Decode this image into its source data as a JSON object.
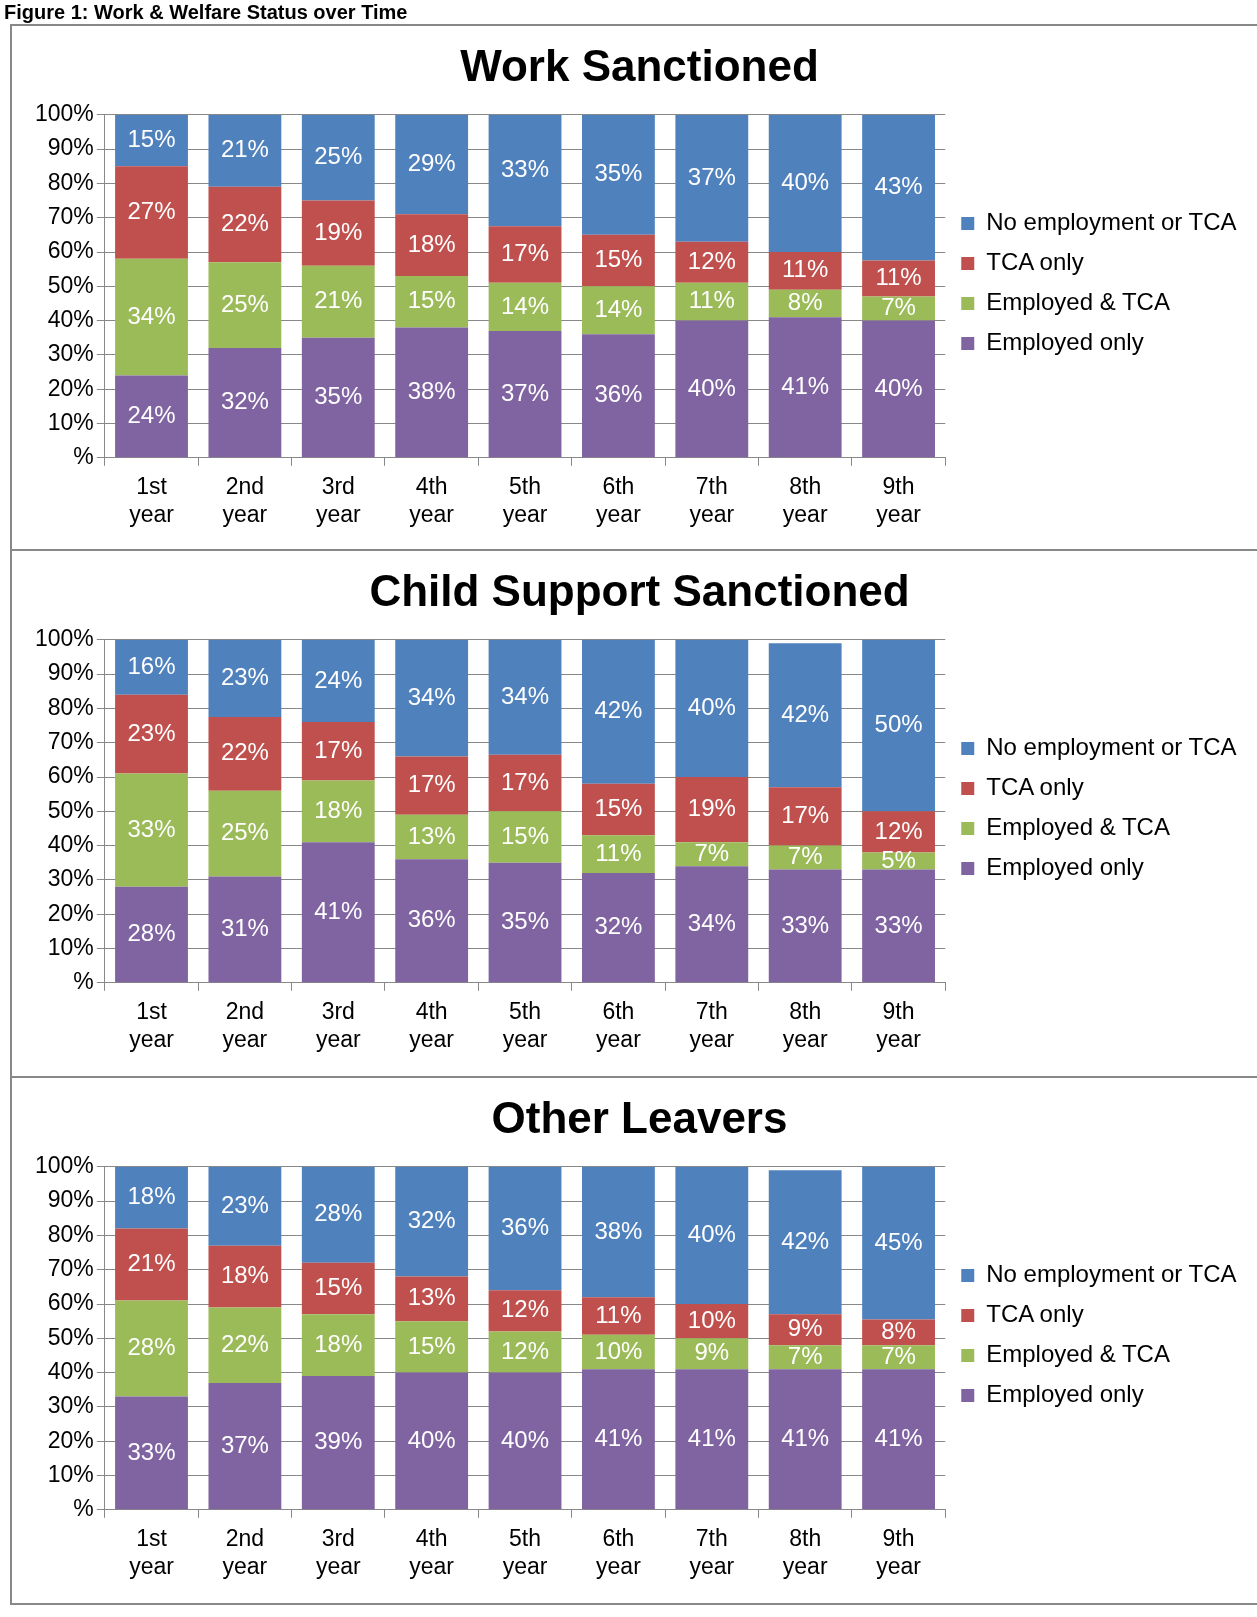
{
  "chart_data": [
    {
      "type": "bar",
      "title": "Work Sanctioned",
      "annotations": [
        "Figure 1: Work & Welfare Status over Time"
      ],
      "categories": [
        "1st year",
        "2nd year",
        "3rd year",
        "4th year",
        "5th year",
        "6th year",
        "7th year",
        "8th year",
        "9th year"
      ],
      "stacked": true,
      "legend": "right",
      "grid": "y",
      "ylim": [
        0,
        100
      ],
      "yticks": [
        {
          "value": 0,
          "label": "%"
        },
        {
          "value": 10,
          "label": "10%"
        },
        {
          "value": 20,
          "label": "20%"
        },
        {
          "value": 30,
          "label": "30%"
        },
        {
          "value": 40,
          "label": "40%"
        },
        {
          "value": 50,
          "label": "50%"
        },
        {
          "value": 60,
          "label": "60%"
        },
        {
          "value": 70,
          "label": "70%"
        },
        {
          "value": 80,
          "label": "80%"
        },
        {
          "value": 90,
          "label": "90%"
        },
        {
          "value": 100,
          "label": "100%"
        }
      ],
      "series": [
        {
          "name": "Employed only",
          "color": "#8064a2",
          "values": [
            24,
            32,
            35,
            38,
            37,
            36,
            40,
            41,
            40
          ],
          "value_labels": [
            "24%",
            "32%",
            "35%",
            "38%",
            "37%",
            "36%",
            "40%",
            "41%",
            "40%"
          ]
        },
        {
          "name": "Employed & TCA",
          "color": "#9bbb59",
          "values": [
            34,
            25,
            21,
            15,
            14,
            14,
            11,
            8,
            7
          ],
          "value_labels": [
            "34%",
            "25%",
            "21%",
            "15%",
            "14%",
            "14%",
            "11%",
            "8%",
            "7%"
          ]
        },
        {
          "name": "TCA only",
          "color": "#c0504d",
          "values": [
            27,
            22,
            19,
            18,
            16.5,
            15,
            12,
            11,
            10.5
          ],
          "value_labels": [
            "27%",
            "22%",
            "19%",
            "18%",
            "17%",
            "15%",
            "12%",
            "11%",
            "11%"
          ]
        },
        {
          "name": "No employment or TCA",
          "color": "#4f81bd",
          "values": [
            15,
            21,
            25,
            29,
            32.5,
            35,
            37,
            40,
            42.5
          ],
          "value_labels": [
            "15%",
            "21%",
            "25%",
            "29%",
            "33%",
            "35%",
            "37%",
            "40%",
            "43%"
          ]
        }
      ]
    },
    {
      "type": "bar",
      "title": "Child Support Sanctioned",
      "categories": [
        "1st year",
        "2nd year",
        "3rd year",
        "4th year",
        "5th year",
        "6th year",
        "7th year",
        "8th year",
        "9th year"
      ],
      "stacked": true,
      "legend": "right",
      "grid": "y",
      "ylim": [
        0,
        100
      ],
      "yticks": [
        {
          "value": 0,
          "label": "%"
        },
        {
          "value": 10,
          "label": "10%"
        },
        {
          "value": 20,
          "label": "20%"
        },
        {
          "value": 30,
          "label": "30%"
        },
        {
          "value": 40,
          "label": "40%"
        },
        {
          "value": 50,
          "label": "50%"
        },
        {
          "value": 60,
          "label": "60%"
        },
        {
          "value": 70,
          "label": "70%"
        },
        {
          "value": 80,
          "label": "80%"
        },
        {
          "value": 90,
          "label": "90%"
        },
        {
          "value": 100,
          "label": "100%"
        }
      ],
      "series": [
        {
          "name": "Employed only",
          "color": "#8064a2",
          "values": [
            28,
            31,
            41,
            36,
            35,
            32,
            34,
            33,
            33
          ],
          "value_labels": [
            "28%",
            "31%",
            "41%",
            "36%",
            "35%",
            "32%",
            "34%",
            "33%",
            "33%"
          ]
        },
        {
          "name": "Employed & TCA",
          "color": "#9bbb59",
          "values": [
            33,
            25,
            18,
            13,
            15,
            11,
            7,
            7,
            5
          ],
          "value_labels": [
            "33%",
            "25%",
            "18%",
            "13%",
            "15%",
            "11%",
            "7%",
            "7%",
            "5%"
          ]
        },
        {
          "name": "TCA only",
          "color": "#c0504d",
          "values": [
            23,
            21.5,
            17,
            17,
            16.5,
            15,
            19,
            17,
            12
          ],
          "value_labels": [
            "23%",
            "22%",
            "17%",
            "17%",
            "17%",
            "15%",
            "19%",
            "17%",
            "12%"
          ]
        },
        {
          "name": "No employment or TCA",
          "color": "#4f81bd",
          "values": [
            16,
            22.5,
            24,
            34,
            33.5,
            42,
            40,
            42,
            50
          ],
          "value_labels": [
            "16%",
            "23%",
            "24%",
            "34%",
            "34%",
            "42%",
            "40%",
            "42%",
            "50%"
          ]
        }
      ]
    },
    {
      "type": "bar",
      "title": "Other Leavers",
      "categories": [
        "1st year",
        "2nd year",
        "3rd year",
        "4th year",
        "5th year",
        "6th year",
        "7th year",
        "8th year",
        "9th year"
      ],
      "stacked": true,
      "legend": "right",
      "grid": "y",
      "ylim": [
        0,
        100
      ],
      "yticks": [
        {
          "value": 0,
          "label": "%"
        },
        {
          "value": 10,
          "label": "10%"
        },
        {
          "value": 20,
          "label": "20%"
        },
        {
          "value": 30,
          "label": "30%"
        },
        {
          "value": 40,
          "label": "40%"
        },
        {
          "value": 50,
          "label": "50%"
        },
        {
          "value": 60,
          "label": "60%"
        },
        {
          "value": 70,
          "label": "70%"
        },
        {
          "value": 80,
          "label": "80%"
        },
        {
          "value": 90,
          "label": "90%"
        },
        {
          "value": 100,
          "label": "100%"
        }
      ],
      "series": [
        {
          "name": "Employed only",
          "color": "#8064a2",
          "values": [
            33,
            37,
            39,
            40,
            40,
            41,
            41,
            41,
            41
          ],
          "value_labels": [
            "33%",
            "37%",
            "39%",
            "40%",
            "40%",
            "41%",
            "41%",
            "41%",
            "41%"
          ]
        },
        {
          "name": "Employed & TCA",
          "color": "#9bbb59",
          "values": [
            28,
            22,
            18,
            15,
            12,
            10,
            9,
            7,
            7
          ],
          "value_labels": [
            "28%",
            "22%",
            "18%",
            "15%",
            "12%",
            "10%",
            "9%",
            "7%",
            "7%"
          ]
        },
        {
          "name": "TCA only",
          "color": "#c0504d",
          "values": [
            21,
            18,
            15,
            13,
            12,
            11,
            10,
            9,
            7.5
          ],
          "value_labels": [
            "21%",
            "18%",
            "15%",
            "13%",
            "12%",
            "11%",
            "10%",
            "9%",
            "8%"
          ]
        },
        {
          "name": "No employment or TCA",
          "color": "#4f81bd",
          "values": [
            18,
            23,
            28,
            32,
            36,
            38,
            40,
            42,
            44.5
          ],
          "value_labels": [
            "18%",
            "23%",
            "28%",
            "32%",
            "36%",
            "38%",
            "40%",
            "42%",
            "45%"
          ]
        }
      ]
    }
  ]
}
